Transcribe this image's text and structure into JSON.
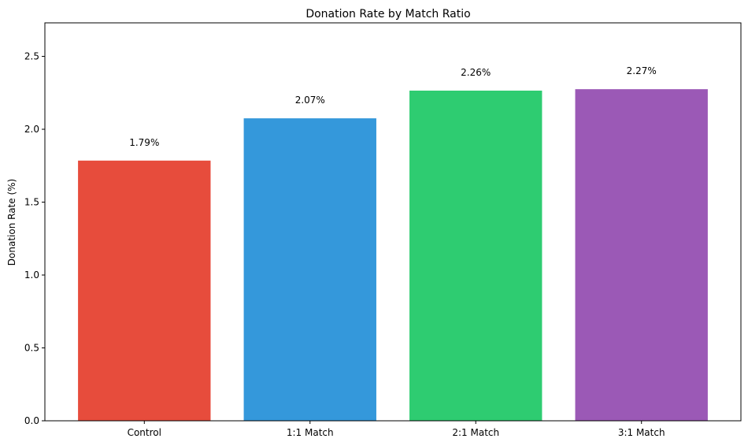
{
  "chart_data": {
    "type": "bar",
    "title": "Donation Rate by Match Ratio",
    "xlabel": "",
    "ylabel": "Donation Rate (%)",
    "categories": [
      "Control",
      "1:1 Match",
      "2:1 Match",
      "3:1 Match"
    ],
    "values": [
      1.785,
      2.075,
      2.265,
      2.275
    ],
    "data_labels": [
      "1.79%",
      "2.07%",
      "2.26%",
      "2.27%"
    ],
    "colors": [
      "#e74c3c",
      "#3498db",
      "#2ecc71",
      "#9b59b6"
    ],
    "ylim": [
      0,
      2.73
    ],
    "yticks": [
      "0.0",
      "0.5",
      "1.0",
      "1.5",
      "2.0",
      "2.5"
    ],
    "grid": false,
    "legend": "none"
  }
}
